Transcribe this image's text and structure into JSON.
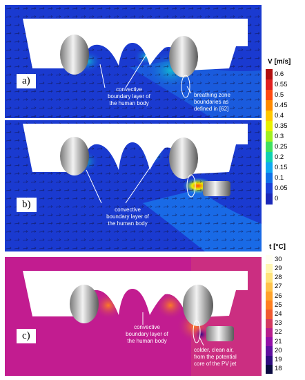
{
  "panels": {
    "a": {
      "label": "a)",
      "annotations": {
        "boundary": [
          "convective",
          "boundary layer of",
          "the human body"
        ],
        "breathing": [
          "breathing zone",
          "boundaries as",
          "defined in [62]"
        ]
      }
    },
    "b": {
      "label": "b)",
      "annotations": {
        "boundary": [
          "convective",
          "boundary layer of",
          "the human body"
        ]
      }
    },
    "c": {
      "label": "c)",
      "annotations": {
        "boundary": [
          "convective",
          "boundary layer of",
          "the human body"
        ],
        "clean_air": [
          "colder, clean air,",
          "from the potential",
          "core of the PV jet"
        ]
      }
    }
  },
  "velocity_scale": {
    "title": "V [m/s]",
    "ticks": [
      "0.6",
      "0.55",
      "0.5",
      "0.45",
      "0.4",
      "0.35",
      "0.3",
      "0.25",
      "0.2",
      "0.15",
      "0.1",
      "0.05",
      "0"
    ],
    "colors": [
      "#b01010",
      "#e02020",
      "#ff4a10",
      "#ff8a00",
      "#ffc800",
      "#e8f000",
      "#a0f020",
      "#40e060",
      "#10d0b0",
      "#10a8f0",
      "#1070e8",
      "#1a40d8",
      "#1a28b8"
    ]
  },
  "temperature_scale": {
    "title": "t [°C]",
    "ticks": [
      "30",
      "29",
      "28",
      "27",
      "26",
      "25",
      "24",
      "23",
      "22",
      "21",
      "20",
      "19",
      "18"
    ],
    "colors": [
      "#fffff0",
      "#fff6b0",
      "#ffe27a",
      "#ffc24a",
      "#ffa22a",
      "#ff7f20",
      "#f05a30",
      "#d43a60",
      "#b81e8c",
      "#9410a8",
      "#6010a0",
      "#300c80",
      "#0a0a40"
    ]
  }
}
